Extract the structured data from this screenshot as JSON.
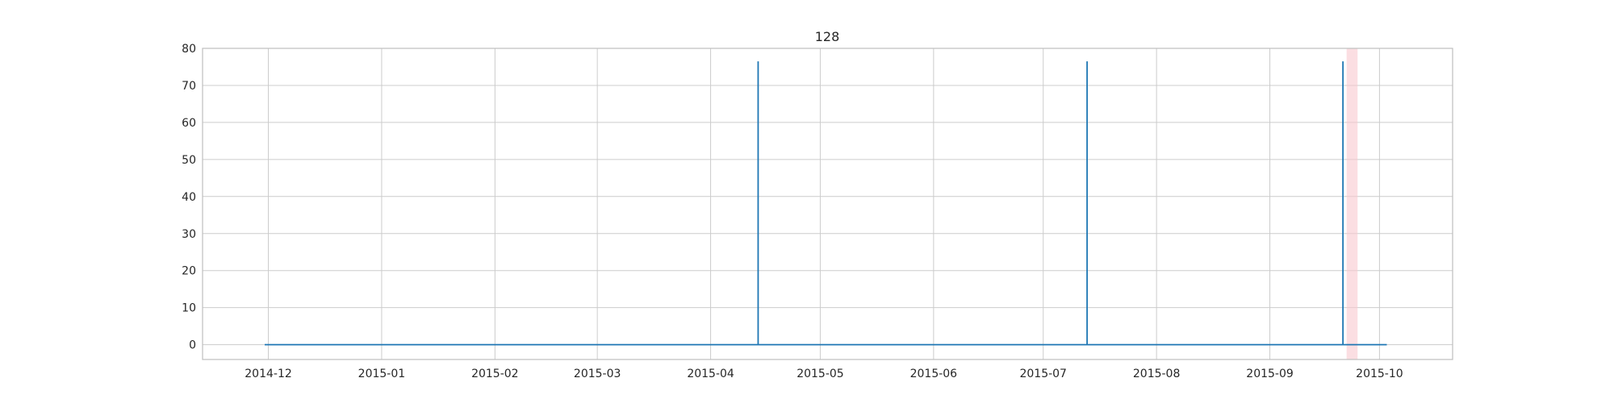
{
  "chart_data": {
    "type": "line",
    "title": "128",
    "xlabel": "",
    "ylabel": "",
    "x_axis": "date",
    "xlim": [
      "2014-11-13",
      "2015-10-21"
    ],
    "ylim": [
      -4,
      80
    ],
    "grid": true,
    "x_ticks": [
      "2014-12",
      "2015-01",
      "2015-02",
      "2015-03",
      "2015-04",
      "2015-05",
      "2015-06",
      "2015-07",
      "2015-08",
      "2015-09",
      "2015-10"
    ],
    "y_ticks": [
      0,
      10,
      20,
      30,
      40,
      50,
      60,
      70,
      80
    ],
    "series": [
      {
        "color": "#1f77b4",
        "points": [
          {
            "x": "2014-11-30",
            "y": 0
          },
          {
            "x": "2015-04-14",
            "y": 0
          },
          {
            "x": "2015-04-14",
            "y": 76.5
          },
          {
            "x": "2015-04-14",
            "y": 0
          },
          {
            "x": "2015-07-13",
            "y": 0
          },
          {
            "x": "2015-07-13",
            "y": 76.5
          },
          {
            "x": "2015-07-13",
            "y": 0
          },
          {
            "x": "2015-09-21",
            "y": 0
          },
          {
            "x": "2015-09-21",
            "y": 76.5
          },
          {
            "x": "2015-09-21",
            "y": 0
          },
          {
            "x": "2015-10-03",
            "y": 0
          }
        ]
      }
    ],
    "highlight_spans": [
      {
        "start": "2015-09-22",
        "end": "2015-09-25",
        "color": "#f8c8cf"
      }
    ],
    "colors": {
      "grid": "#cccccc",
      "axes_edge": "#bfbfbf",
      "text": "#262626"
    }
  }
}
